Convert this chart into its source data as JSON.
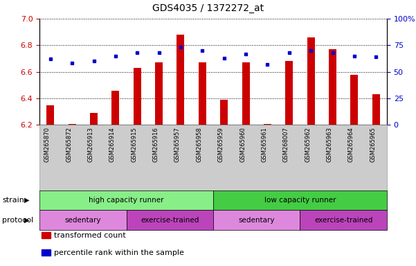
{
  "title": "GDS4035 / 1372272_at",
  "samples": [
    "GSM265870",
    "GSM265872",
    "GSM265913",
    "GSM265914",
    "GSM265915",
    "GSM265916",
    "GSM265957",
    "GSM265958",
    "GSM265959",
    "GSM265960",
    "GSM265961",
    "GSM268007",
    "GSM265962",
    "GSM265963",
    "GSM265964",
    "GSM265965"
  ],
  "transformed_count": [
    6.35,
    6.21,
    6.29,
    6.46,
    6.63,
    6.67,
    6.88,
    6.67,
    6.39,
    6.67,
    6.21,
    6.68,
    6.86,
    6.77,
    6.58,
    6.43
  ],
  "percentile_rank": [
    62,
    58,
    60,
    65,
    68,
    68,
    73,
    70,
    63,
    67,
    57,
    68,
    70,
    68,
    65,
    64
  ],
  "ylim_left": [
    6.2,
    7.0
  ],
  "ylim_right": [
    0,
    100
  ],
  "yticks_left": [
    6.2,
    6.4,
    6.6,
    6.8,
    7.0
  ],
  "yticks_right": [
    0,
    25,
    50,
    75,
    100
  ],
  "bar_color": "#cc0000",
  "dot_color": "#0000cc",
  "bar_bottom": 6.2,
  "strain_groups": [
    {
      "label": "high capacity runner",
      "start": 0,
      "end": 8,
      "color": "#88ee88"
    },
    {
      "label": "low capacity runner",
      "start": 8,
      "end": 16,
      "color": "#44cc44"
    }
  ],
  "protocol_groups": [
    {
      "label": "sedentary",
      "start": 0,
      "end": 4,
      "color": "#dd88dd"
    },
    {
      "label": "exercise-trained",
      "start": 4,
      "end": 8,
      "color": "#bb44bb"
    },
    {
      "label": "sedentary",
      "start": 8,
      "end": 12,
      "color": "#dd88dd"
    },
    {
      "label": "exercise-trained",
      "start": 12,
      "end": 16,
      "color": "#bb44bb"
    }
  ],
  "legend_items": [
    {
      "label": "transformed count",
      "color": "#cc0000"
    },
    {
      "label": "percentile rank within the sample",
      "color": "#0000cc"
    }
  ],
  "grid_color": "black",
  "xtick_bg_color": "#cccccc",
  "xtick_border_color": "#999999"
}
